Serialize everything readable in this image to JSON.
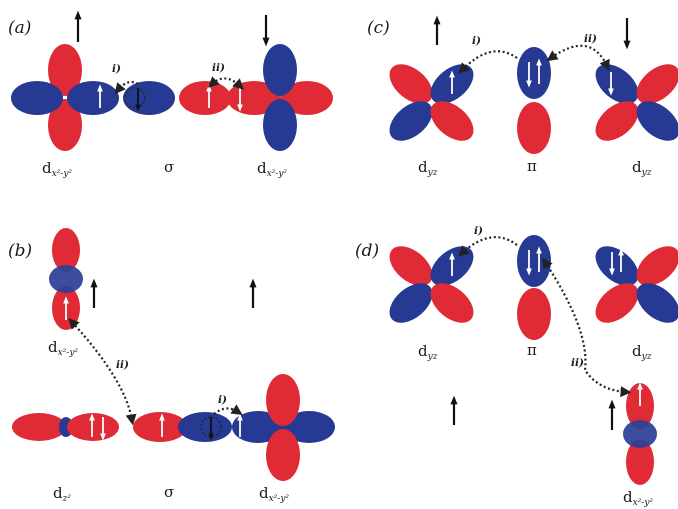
{
  "panels": {
    "a": {
      "label": "(a)",
      "step_i": "i)",
      "step_ii": "ii)",
      "orbitals": [
        {
          "main": "d",
          "sub": "x²-y²"
        },
        {
          "main": "σ",
          "sub": ""
        },
        {
          "main": "d",
          "sub": "x²-y²"
        }
      ]
    },
    "b": {
      "label": "(b)",
      "step_i": "i)",
      "step_ii": "ii)",
      "orbitals": [
        {
          "main": "d",
          "sub": "x²-y²"
        },
        {
          "main": "d",
          "sub": "z²"
        },
        {
          "main": "σ",
          "sub": ""
        },
        {
          "main": "d",
          "sub": "x²-y²"
        }
      ]
    },
    "c": {
      "label": "(c)",
      "step_i": "i)",
      "step_ii": "ii)",
      "orbitals": [
        {
          "main": "d",
          "sub": "yz"
        },
        {
          "main": "π",
          "sub": ""
        },
        {
          "main": "d",
          "sub": "yz"
        }
      ]
    },
    "d": {
      "label": "(d)",
      "step_i": "i)",
      "step_ii": "ii)",
      "orbitals": [
        {
          "main": "d",
          "sub": "yz"
        },
        {
          "main": "π",
          "sub": ""
        },
        {
          "main": "d",
          "sub": "yz"
        },
        {
          "main": "d",
          "sub": "x²-y²"
        }
      ]
    }
  },
  "colors": {
    "lobe_red": "#e02b36",
    "lobe_blue": "#263a94",
    "arrow": "#111111"
  }
}
